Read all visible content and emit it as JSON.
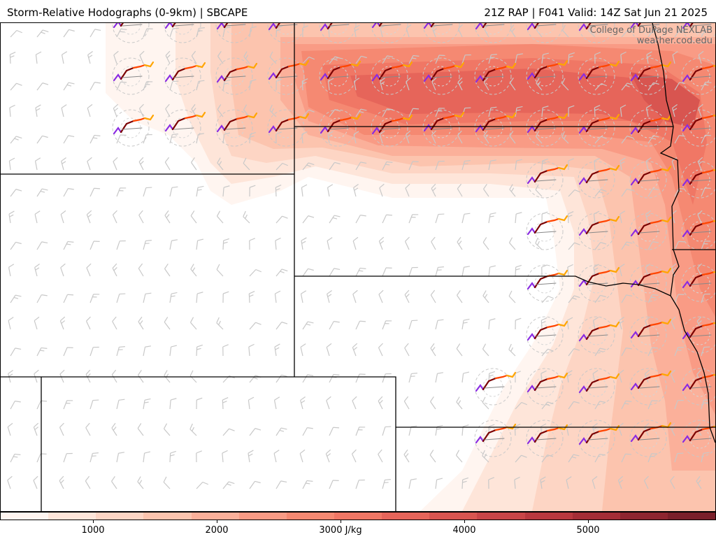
{
  "header": {
    "title": "Storm-Relative Hodographs (0-9km) | SBCAPE",
    "run_info": "21Z RAP | F041 Valid: 14Z Sat Jun 21 2025"
  },
  "credits": {
    "line1": "College of DuPage NEXLAB",
    "line2": "weather.cod.edu"
  },
  "colorbar": {
    "ticks": [
      "1000",
      "2000",
      "3000 J/kg",
      "4000",
      "5000"
    ],
    "colors": [
      "#fff5f0",
      "#fee5d9",
      "#fdd5c4",
      "#fcc4ae",
      "#fbb09a",
      "#f99b85",
      "#f58972",
      "#f07765",
      "#e6655a",
      "#d85550",
      "#c94548",
      "#b8383f",
      "#a42d36",
      "#8e2530",
      "#7a1f2a"
    ]
  },
  "field": {
    "variable": "SBCAPE",
    "hodograph_colors": [
      "#8a2be2",
      "#7a0000",
      "#ff4500",
      "#ffa500"
    ]
  }
}
